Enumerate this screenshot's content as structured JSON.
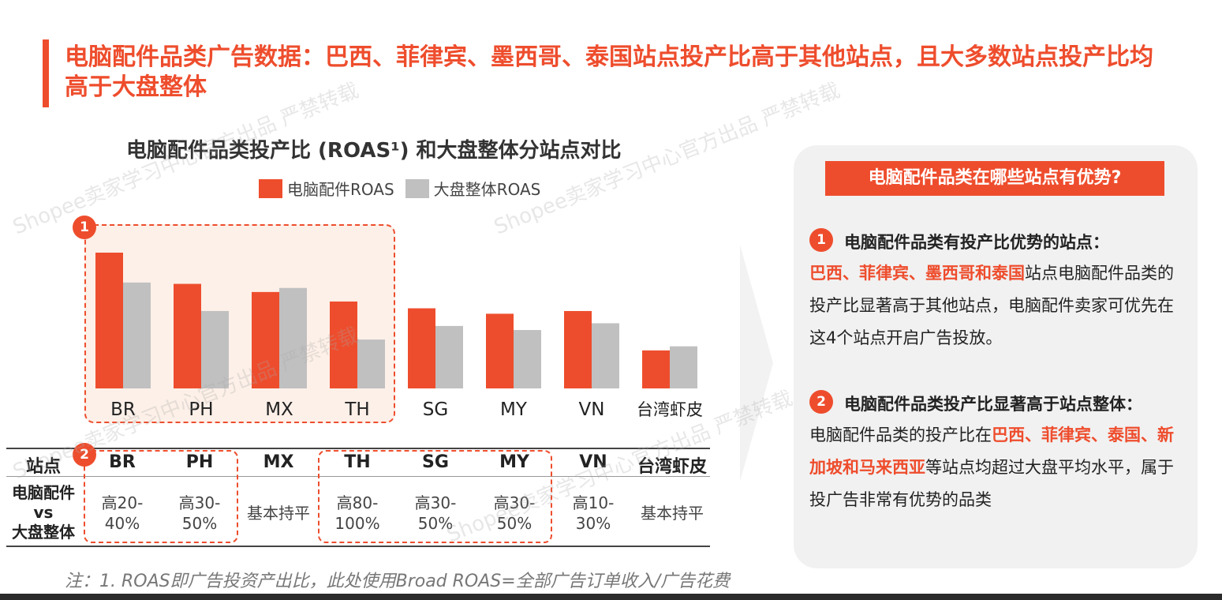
{
  "page_title": "电脑配件品类广告数据：巴西、菲律宾、墨西哥、泰国站点投产比高于其他站点，且大多数站点投产比均高于大盘整体",
  "colors": {
    "accent": "#ee4d2d",
    "gray": "#c0c0c0",
    "panel": "#f1f1f1"
  },
  "chart_data": {
    "type": "bar",
    "title": "电脑配件品类投产比 (ROAS¹) 和大盘整体分站点对比",
    "categories": [
      "BR",
      "PH",
      "MX",
      "TH",
      "SG",
      "MY",
      "VN",
      "台湾虾皮"
    ],
    "series": [
      {
        "name": "电脑配件ROAS",
        "color": "#ee4d2d",
        "values": [
          100,
          77,
          71,
          64,
          59,
          55,
          57,
          28
        ]
      },
      {
        "name": "大盘整体ROAS",
        "color": "#c0c0c0",
        "values": [
          78,
          57,
          74,
          36,
          46,
          43,
          48,
          31
        ]
      }
    ],
    "ylim": [
      0,
      100
    ],
    "legend": "top",
    "grid": false
  },
  "markers": {
    "one": "1",
    "two": "2"
  },
  "table": {
    "header_label": "站点",
    "row_label_line1": "电脑配件",
    "row_label_line2": "vs",
    "row_label_line3": "大盘整体",
    "columns": [
      "BR",
      "PH",
      "MX",
      "TH",
      "SG",
      "MY",
      "VN",
      "台湾虾皮"
    ],
    "values": [
      [
        "高20-",
        "40%"
      ],
      [
        "高30-",
        "50%"
      ],
      [
        "基本持平",
        ""
      ],
      [
        "高80-",
        "100%"
      ],
      [
        "高30-",
        "50%"
      ],
      [
        "高30-",
        "50%"
      ],
      [
        "高10-",
        "30%"
      ],
      [
        "基本持平",
        ""
      ]
    ]
  },
  "footnote": "注：1. ROAS即广告投资产出比，此处使用Broad ROAS=全部广告订单收入/广告花费",
  "panel": {
    "title": "电脑配件品类在哪些站点有优势?",
    "point1": {
      "num": "1",
      "heading": "电脑配件品类有投产比优势的站点：",
      "highlight": "巴西、菲律宾、墨西哥和泰国",
      "text": "站点电脑配件品类的投产比显著高于其他站点，电脑配件卖家可优先在这4个站点开启广告投放。"
    },
    "point2": {
      "num": "2",
      "heading": "电脑配件品类投产比显著高于站点整体：",
      "text_before": "电脑配件品类的投产比在",
      "highlight": "巴西、菲律宾、泰国、新加坡和马来西亚",
      "text_after": "等站点均超过大盘平均水平，属于投广告非常有优势的品类"
    }
  },
  "watermark": "Shopee卖家学习中心官方出品 严禁转载"
}
